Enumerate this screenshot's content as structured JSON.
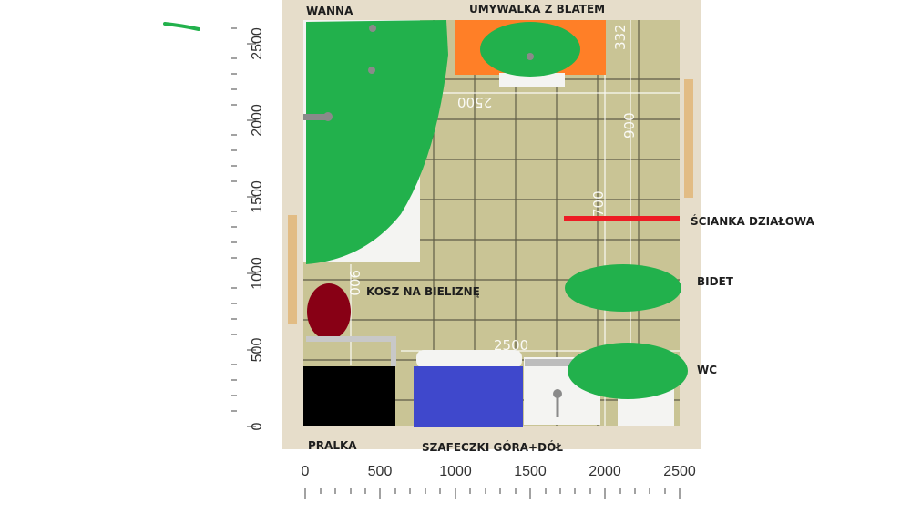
{
  "labels": {
    "wanna": "WANNA",
    "umywalka": "UMYWALKA Z BLATEM",
    "scianka": "ŚCIANKA DZIAŁOWA",
    "bidet": "BIDET",
    "kosz": "KOSZ NA BIELIZNĘ",
    "wc": "WC",
    "pralka": "PRALKA",
    "szafeczki": "SZAFECZKI GÓRA+DÓŁ"
  },
  "dimensions": {
    "top_width": "2500",
    "bottom_width": "2500",
    "top_small": "332",
    "right_900": "900",
    "right_700": "700",
    "left_900": "900"
  },
  "axis_x": {
    "ticks": [
      "0",
      "500",
      "1000",
      "1500",
      "2000",
      "2500"
    ]
  },
  "axis_y": {
    "ticks": [
      "0",
      "500",
      "1000",
      "1500",
      "2000",
      "2500"
    ]
  },
  "colors": {
    "floor": "#c9c495",
    "grid": "#3c3a2c",
    "wall": "#e6ddca",
    "marker_green": "#22b14c",
    "countertop_orange": "#ff7f27",
    "basket_maroon": "#880015",
    "washer_black": "#000000",
    "cabinet_blue": "#3f48cc",
    "partition_red": "#ed1c24",
    "door_wood": "#e2bc84"
  }
}
